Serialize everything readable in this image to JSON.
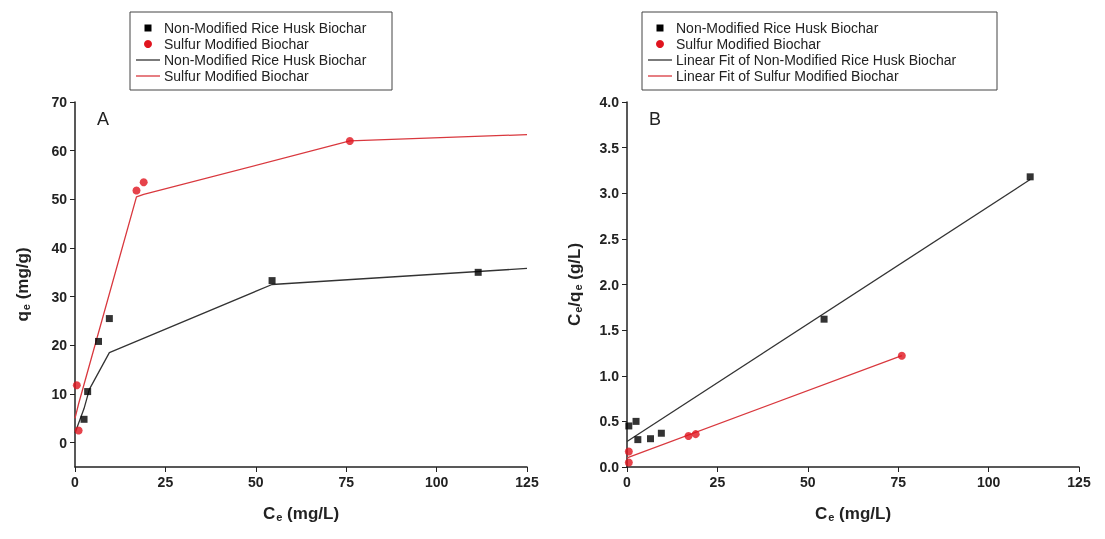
{
  "chart_data": [
    {
      "type": "scatter",
      "xlabel": "C$_{e}$ (mg/L)",
      "ylabel": "q$_{e}$ (mg/g)",
      "annotations": [
        "A"
      ],
      "xlim": [
        0,
        125
      ],
      "xticks": [
        0,
        25,
        50,
        75,
        100,
        125
      ],
      "ylim": [
        -5,
        70
      ],
      "yticks": [
        0,
        10,
        20,
        30,
        40,
        50,
        60,
        70
      ],
      "grid": false,
      "legend": "top",
      "series": [
        {
          "name": "Non-Modified Rice Husk Biochar",
          "marker": "square",
          "color": "#000000",
          "x": [
            2.5,
            3.5,
            6.5,
            9.5,
            54.5,
            111.5
          ],
          "values": [
            4.8,
            10.5,
            20.8,
            25.5,
            33.3,
            35
          ]
        },
        {
          "name": "Sulfur Modified Biochar",
          "marker": "circle",
          "color": "#e0141e",
          "x": [
            0.5,
            1,
            17,
            19,
            76
          ],
          "values": [
            11.8,
            2.5,
            51.8,
            53.5,
            62
          ]
        },
        {
          "name": "Non-Modified Rice Husk Biochar",
          "type": "line",
          "marker": "none",
          "color": "#333333",
          "x": [
            0,
            2.5,
            4,
            9.5,
            54.5,
            125
          ],
          "values": [
            2,
            7,
            11,
            18.5,
            32.5,
            35.8
          ]
        },
        {
          "name": "Sulfur Modified Biochar",
          "type": "line",
          "marker": "none",
          "color": "#d9383e",
          "x": [
            0,
            1,
            17,
            19,
            76,
            125
          ],
          "values": [
            5,
            8,
            50.5,
            51,
            62,
            63.3
          ]
        }
      ]
    },
    {
      "type": "scatter",
      "xlabel": "C$_{e}$ (mg/L)",
      "ylabel": "C$_{e}$/q$_{e}$ (g/L)",
      "annotations": [
        "B"
      ],
      "xlim": [
        0,
        125
      ],
      "xticks": [
        0,
        25,
        50,
        75,
        100,
        125
      ],
      "ylim": [
        0,
        4
      ],
      "yticks": [
        {
          "value": 0,
          "label": "0.0"
        },
        0.5,
        {
          "value": 1,
          "label": "1.0"
        },
        1.5,
        {
          "value": 2,
          "label": "2.0"
        },
        2.5,
        {
          "value": 3,
          "label": "3.0"
        },
        3.5,
        {
          "value": 4,
          "label": "4.0"
        }
      ],
      "grid": false,
      "legend": "top",
      "series": [
        {
          "name": "Non-Modified Rice Husk Biochar",
          "marker": "square",
          "color": "#000000",
          "x": [
            0.5,
            2.5,
            3,
            6.5,
            9.5,
            54.5,
            111.5
          ],
          "values": [
            0.45,
            0.5,
            0.3,
            0.31,
            0.37,
            1.62,
            3.18
          ]
        },
        {
          "name": "Sulfur Modified Biochar",
          "marker": "circle",
          "color": "#e0141e",
          "x": [
            0.5,
            0.5,
            17,
            19,
            76
          ],
          "values": [
            0.17,
            0.05,
            0.34,
            0.36,
            1.22
          ]
        },
        {
          "name": "Linear Fit of Non-Modified Rice Husk Biochar",
          "type": "line",
          "marker": "none",
          "color": "#333333",
          "x": [
            0,
            111.5
          ],
          "values": [
            0.28,
            3.15
          ]
        },
        {
          "name": "Linear Fit of Sulfur Modified Biochar",
          "type": "line",
          "marker": "none",
          "color": "#d9383e",
          "x": [
            0,
            76
          ],
          "values": [
            0.1,
            1.22
          ]
        }
      ]
    }
  ]
}
